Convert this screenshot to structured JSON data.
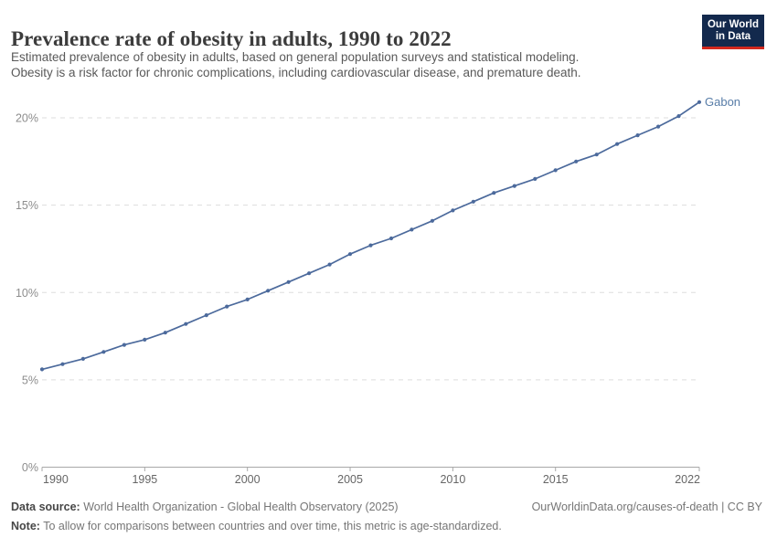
{
  "header": {
    "title": "Prevalence rate of obesity in adults, 1990 to 2022",
    "subtitle_line1": "Estimated prevalence of obesity in adults, based on general population surveys and statistical modeling.",
    "subtitle_line2": "Obesity is a risk factor for chronic complications, including cardiovascular disease, and premature death.",
    "logo": {
      "line1": "Our World",
      "line2": "in Data",
      "bg_color": "#13294d",
      "accent_color": "#d2281e"
    }
  },
  "chart_data": {
    "type": "line",
    "title": "Prevalence rate of obesity in adults, 1990 to 2022",
    "entity_label": "Gabon",
    "x": [
      1990,
      1991,
      1992,
      1993,
      1994,
      1995,
      1996,
      1997,
      1998,
      1999,
      2000,
      2001,
      2002,
      2003,
      2004,
      2005,
      2006,
      2007,
      2008,
      2009,
      2010,
      2011,
      2012,
      2013,
      2014,
      2015,
      2016,
      2017,
      2018,
      2019,
      2020,
      2021,
      2022
    ],
    "series": [
      {
        "name": "Gabon",
        "color": "#4c6a9c",
        "values": [
          5.6,
          5.9,
          6.2,
          6.6,
          7.0,
          7.3,
          7.7,
          8.2,
          8.7,
          9.2,
          9.6,
          10.1,
          10.6,
          11.1,
          11.6,
          12.2,
          12.7,
          13.1,
          13.6,
          14.1,
          14.7,
          15.2,
          15.7,
          16.1,
          16.5,
          17.0,
          17.5,
          17.9,
          18.5,
          19.0,
          19.5,
          20.1,
          20.9
        ]
      }
    ],
    "xticks": [
      1990,
      1995,
      2000,
      2005,
      2010,
      2015,
      2022
    ],
    "yticks": [
      {
        "value": 0,
        "label": "0%"
      },
      {
        "value": 5,
        "label": "5%"
      },
      {
        "value": 10,
        "label": "10%"
      },
      {
        "value": 15,
        "label": "15%"
      },
      {
        "value": 20,
        "label": "20%"
      }
    ],
    "xlabel": "",
    "ylabel": "",
    "xlim": [
      1990,
      2022
    ],
    "ylim": [
      0,
      21.5
    ],
    "grid": "horizontal-dashed",
    "legend": "entity-label-at-line-end",
    "colors": {
      "line": "#4c6a9c",
      "gridline": "#dddddd",
      "axis": "#a8a8a8",
      "ytick_label": "#8d8d8d",
      "xtick_label": "#666666"
    }
  },
  "footer": {
    "data_source_label": "Data source:",
    "data_source_text": " World Health Organization - Global Health Observatory (2025)",
    "rights": "OurWorldinData.org/causes-of-death | CC BY",
    "note_label": "Note:",
    "note_text": " To allow for comparisons between countries and over time, this metric is age-standardized."
  }
}
